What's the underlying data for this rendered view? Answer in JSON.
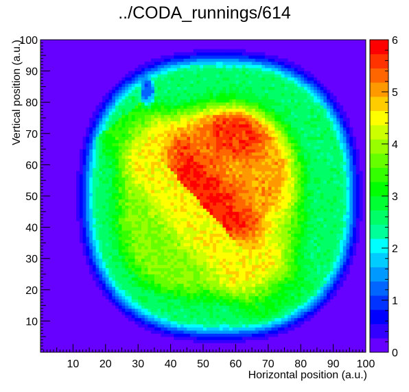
{
  "chart_data": {
    "type": "heatmap",
    "title": "../CODA_runnings/614",
    "xlabel": "Horizontal position (a.u.)",
    "ylabel": "Vertical position (a.u.)",
    "xlim": [
      0,
      100
    ],
    "ylim": [
      0,
      100
    ],
    "zlim": [
      0,
      6
    ],
    "x_ticks": [
      10,
      20,
      30,
      40,
      50,
      60,
      70,
      80,
      90,
      100
    ],
    "y_ticks": [
      10,
      20,
      30,
      40,
      50,
      60,
      70,
      80,
      90,
      100
    ],
    "z_ticks": [
      0,
      1,
      2,
      3,
      4,
      5,
      6
    ],
    "bins": {
      "x": 100,
      "y": 100
    },
    "colormap": [
      "#6600ff",
      "#3300ff",
      "#0000ff",
      "#0033ff",
      "#0066ff",
      "#0099ff",
      "#00ccff",
      "#00ffff",
      "#00ff99",
      "#00ff66",
      "#00ff33",
      "#00ff00",
      "#33ff00",
      "#66ff00",
      "#99ff00",
      "#ccff00",
      "#ffff00",
      "#ffcc00",
      "#ff9900",
      "#ff6600",
      "#ff3300",
      "#ff0000"
    ],
    "background_color": "#6600ff",
    "regions": [
      {
        "kind": "beam-spot",
        "center": [
          55,
          50
        ],
        "radii": [
          42,
          45
        ],
        "level": 2.2
      },
      {
        "kind": "green-core",
        "center": [
          52,
          48
        ],
        "radii": [
          33,
          35
        ],
        "level": 3.6
      },
      {
        "kind": "yellow-diagonal",
        "from": [
          30,
          70
        ],
        "to": [
          75,
          15
        ],
        "level": 4.4
      },
      {
        "kind": "orange-upper-right",
        "center": [
          58,
          58
        ],
        "level": 5.0
      },
      {
        "kind": "red-hotspots",
        "center": [
          60,
          70
        ],
        "level": 5.6
      },
      {
        "kind": "notch-upper-left",
        "center": [
          33,
          83
        ],
        "level": 3.5
      }
    ]
  }
}
